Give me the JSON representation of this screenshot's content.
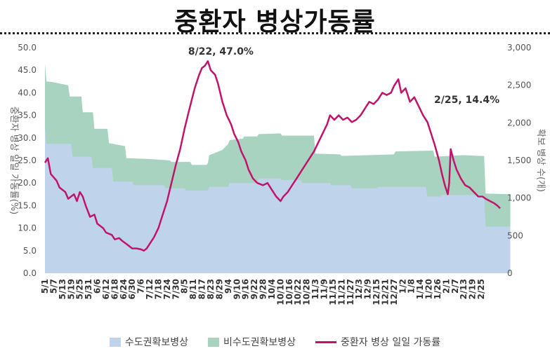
{
  "title": "중환자 병상가동률",
  "colors": {
    "capital": "#bfd4ea",
    "noncapital": "#a7d3c0",
    "rate": "#c0146a"
  },
  "legend": {
    "capital": "수도권확보병상",
    "noncapital": "비수도권확보병상",
    "rate": "중환자 병상 일일 가동률"
  },
  "chart_data": {
    "type": "area",
    "title": "중환자 병상가동률",
    "left_axis": {
      "label": "중환자 병상 일일 가동률(%)",
      "min": 0,
      "max": 50,
      "ticks": [
        "0.0",
        "5.0",
        "10.0",
        "15.0",
        "20.0",
        "25.0",
        "30.0",
        "35.0",
        "40.0",
        "45.0",
        "50.0"
      ]
    },
    "right_axis": {
      "label": "확보 병상 수(개)",
      "min": 0,
      "max": 3000,
      "ticks": [
        "0",
        "500",
        "1,000",
        "1,500",
        "2,000",
        "2,500",
        "3,000"
      ]
    },
    "x_ticks": [
      "5/1",
      "5/7",
      "5/13",
      "5/19",
      "5/25",
      "5/31",
      "6/6",
      "6/12",
      "6/18",
      "6/24",
      "6/30",
      "7/6",
      "7/12",
      "7/18",
      "7/24",
      "7/30",
      "8/5",
      "8/11",
      "8/17",
      "8/23",
      "8/29",
      "9/4",
      "9/10",
      "9/16",
      "9/22",
      "9/28",
      "10/4",
      "10/10",
      "10/16",
      "10/22",
      "10/28",
      "11/3",
      "11/9",
      "11/15",
      "11/21",
      "11/27",
      "12/3",
      "12/9",
      "12/15",
      "12/21",
      "12/27",
      "1/2",
      "1/8",
      "1/14",
      "1/20",
      "1/26",
      "2/1",
      "2/7",
      "2/13",
      "2/19",
      "2/25"
    ],
    "stacked_series": [
      {
        "name": "수도권확보병상",
        "axis": "right",
        "points": [
          [
            0,
            1950
          ],
          [
            1,
            1720
          ],
          [
            18,
            1720
          ],
          [
            19,
            1550
          ],
          [
            32,
            1550
          ],
          [
            33,
            1400
          ],
          [
            46,
            1400
          ],
          [
            47,
            1220
          ],
          [
            60,
            1220
          ],
          [
            61,
            1170
          ],
          [
            82,
            1170
          ],
          [
            83,
            1130
          ],
          [
            96,
            1130
          ],
          [
            97,
            1100
          ],
          [
            112,
            1100
          ],
          [
            113,
            1150
          ],
          [
            126,
            1150
          ],
          [
            127,
            1200
          ],
          [
            146,
            1200
          ],
          [
            147,
            1260
          ],
          [
            162,
            1260
          ],
          [
            163,
            1240
          ],
          [
            176,
            1240
          ],
          [
            177,
            1200
          ],
          [
            196,
            1200
          ],
          [
            197,
            1170
          ],
          [
            210,
            1170
          ],
          [
            211,
            1130
          ],
          [
            228,
            1130
          ],
          [
            229,
            1150
          ],
          [
            262,
            1150
          ],
          [
            263,
            1020
          ],
          [
            272,
            1020
          ],
          [
            273,
            1040
          ],
          [
            302,
            1040
          ],
          [
            303,
            620
          ],
          [
            320,
            620
          ]
        ]
      },
      {
        "name": "비수도권확보병상",
        "axis": "right",
        "points": [
          [
            0,
            2790
          ],
          [
            1,
            2550
          ],
          [
            6,
            2540
          ],
          [
            16,
            2500
          ],
          [
            17,
            2350
          ],
          [
            25,
            2350
          ],
          [
            26,
            2140
          ],
          [
            33,
            2140
          ],
          [
            34,
            1920
          ],
          [
            43,
            1920
          ],
          [
            44,
            1730
          ],
          [
            55,
            1690
          ],
          [
            56,
            1530
          ],
          [
            71,
            1520
          ],
          [
            86,
            1500
          ],
          [
            87,
            1480
          ],
          [
            100,
            1480
          ],
          [
            101,
            1440
          ],
          [
            111,
            1440
          ],
          [
            112,
            1460
          ],
          [
            113,
            1570
          ],
          [
            122,
            1640
          ],
          [
            126,
            1720
          ],
          [
            127,
            1770
          ],
          [
            136,
            1790
          ],
          [
            137,
            1820
          ],
          [
            146,
            1820
          ],
          [
            147,
            1850
          ],
          [
            162,
            1860
          ],
          [
            163,
            1830
          ],
          [
            185,
            1830
          ],
          [
            186,
            1590
          ],
          [
            203,
            1580
          ],
          [
            204,
            1560
          ],
          [
            240,
            1580
          ],
          [
            241,
            1620
          ],
          [
            267,
            1630
          ],
          [
            268,
            1550
          ],
          [
            288,
            1570
          ],
          [
            300,
            1560
          ],
          [
            302,
            1560
          ],
          [
            303,
            1060
          ],
          [
            320,
            1050
          ]
        ]
      }
    ],
    "line_series": {
      "name": "중환자 병상 일일 가동률",
      "axis": "left",
      "points": [
        [
          0,
          24.5
        ],
        [
          2,
          25.5
        ],
        [
          4,
          22
        ],
        [
          8,
          20.5
        ],
        [
          10,
          19
        ],
        [
          14,
          18
        ],
        [
          16,
          16.5
        ],
        [
          20,
          17.5
        ],
        [
          22,
          16
        ],
        [
          24,
          18
        ],
        [
          26,
          17
        ],
        [
          28,
          15
        ],
        [
          31,
          12.5
        ],
        [
          34,
          13
        ],
        [
          36,
          11
        ],
        [
          40,
          10
        ],
        [
          42,
          9
        ],
        [
          46,
          8.5
        ],
        [
          48,
          7.5
        ],
        [
          51,
          7.8
        ],
        [
          53,
          7.2
        ],
        [
          56,
          6.5
        ],
        [
          60,
          5.5
        ],
        [
          63,
          5.5
        ],
        [
          66,
          5.3
        ],
        [
          68,
          5.0
        ],
        [
          70,
          5.5
        ],
        [
          72,
          6.5
        ],
        [
          75,
          8
        ],
        [
          78,
          10
        ],
        [
          81,
          13
        ],
        [
          84,
          16
        ],
        [
          87,
          20
        ],
        [
          90,
          24
        ],
        [
          93,
          27.5
        ],
        [
          96,
          32
        ],
        [
          99,
          36
        ],
        [
          101,
          38.5
        ],
        [
          103,
          41
        ],
        [
          106,
          44
        ],
        [
          108,
          45.5
        ],
        [
          110,
          46
        ],
        [
          112,
          47
        ],
        [
          114,
          45
        ],
        [
          117,
          44
        ],
        [
          119,
          42
        ],
        [
          122,
          38
        ],
        [
          125,
          35
        ],
        [
          128,
          33
        ],
        [
          130,
          31
        ],
        [
          133,
          29
        ],
        [
          135,
          27
        ],
        [
          138,
          25
        ],
        [
          140,
          23
        ],
        [
          143,
          21
        ],
        [
          146,
          20
        ],
        [
          150,
          19.5
        ],
        [
          153,
          20
        ],
        [
          156,
          18.5
        ],
        [
          159,
          17
        ],
        [
          162,
          16
        ],
        [
          164,
          17
        ],
        [
          167,
          18
        ],
        [
          170,
          19.5
        ],
        [
          173,
          21
        ],
        [
          176,
          22.5
        ],
        [
          179,
          24
        ],
        [
          182,
          25.5
        ],
        [
          185,
          27
        ],
        [
          188,
          29
        ],
        [
          191,
          31
        ],
        [
          194,
          33
        ],
        [
          196,
          35
        ],
        [
          199,
          34
        ],
        [
          202,
          35
        ],
        [
          205,
          34
        ],
        [
          208,
          34.5
        ],
        [
          211,
          33.5
        ],
        [
          214,
          34
        ],
        [
          217,
          35
        ],
        [
          220,
          36.5
        ],
        [
          223,
          38
        ],
        [
          226,
          37.5
        ],
        [
          229,
          38.5
        ],
        [
          232,
          40
        ],
        [
          235,
          39.5
        ],
        [
          238,
          40
        ],
        [
          240,
          41.5
        ],
        [
          243,
          43
        ],
        [
          245,
          40
        ],
        [
          248,
          41
        ],
        [
          251,
          38
        ],
        [
          254,
          39
        ],
        [
          257,
          37
        ],
        [
          260,
          35
        ],
        [
          263,
          33.5
        ],
        [
          266,
          30.5
        ],
        [
          268,
          28.5
        ],
        [
          271,
          25
        ],
        [
          273,
          22
        ],
        [
          275,
          19.5
        ],
        [
          277,
          17.5
        ],
        [
          278,
          20
        ],
        [
          279,
          27.5
        ],
        [
          281,
          25
        ],
        [
          283,
          23
        ],
        [
          286,
          21
        ],
        [
          289,
          19.5
        ],
        [
          292,
          19
        ],
        [
          295,
          18
        ],
        [
          298,
          17
        ],
        [
          301,
          17
        ],
        [
          303,
          16.5
        ],
        [
          306,
          16
        ],
        [
          309,
          15.5
        ],
        [
          311,
          15
        ],
        [
          313,
          14.4
        ]
      ]
    },
    "annotations": [
      "8/22, 47.0%",
      "2/25, 14.4%"
    ]
  }
}
